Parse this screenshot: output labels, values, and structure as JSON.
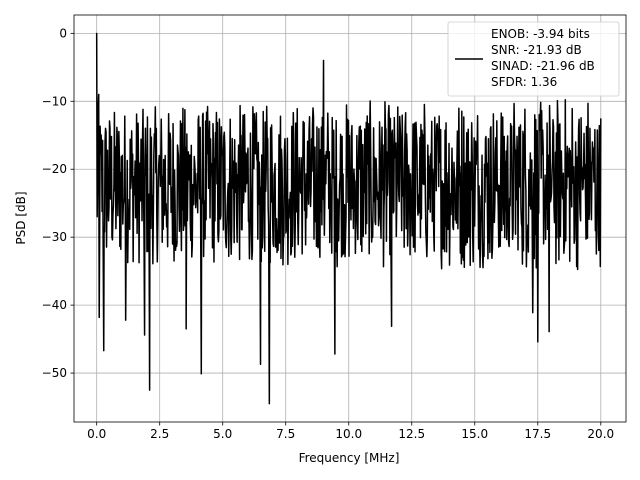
{
  "chart_data": {
    "type": "line",
    "title": "",
    "xlabel": "Frequency [MHz]",
    "ylabel": "PSD [dB]",
    "xlim": [
      -0.9,
      21.0
    ],
    "ylim": [
      -57.2,
      2.7
    ],
    "grid": true,
    "legend_position": "top-right",
    "x_ticks": [
      0.0,
      2.5,
      5.0,
      7.5,
      10.0,
      12.5,
      15.0,
      17.5,
      20.0
    ],
    "x_tick_labels": [
      "0.0",
      "2.5",
      "5.0",
      "7.5",
      "10.0",
      "12.5",
      "15.0",
      "17.5",
      "20.0"
    ],
    "y_ticks": [
      0,
      -10,
      -20,
      -30,
      -40,
      -50
    ],
    "y_tick_labels": [
      "0",
      "−10",
      "−20",
      "−30",
      "−40",
      "−50"
    ],
    "legend": [
      "ENOB: -3.94 bits",
      "SNR: -21.93 dB",
      "SINAD: -21.96 dB",
      "SFDR: 1.36"
    ],
    "series": [
      {
        "color": "#000000",
        "x_range": [
          0,
          20
        ],
        "sample_count": 1024,
        "noise_floor_dB": [
          -34,
          -11
        ],
        "peaks": [
          {
            "x": 0.0,
            "y": 0
          },
          {
            "x": 0.08,
            "y": -9
          },
          {
            "x": 0.1,
            "y": -41.8
          },
          {
            "x": 0.28,
            "y": -46.7
          },
          {
            "x": 1.15,
            "y": -42.2
          },
          {
            "x": 1.9,
            "y": -44.4
          },
          {
            "x": 2.1,
            "y": -52.5
          },
          {
            "x": 3.55,
            "y": -43.5
          },
          {
            "x": 4.15,
            "y": -50.1
          },
          {
            "x": 6.5,
            "y": -48.7
          },
          {
            "x": 6.85,
            "y": -54.5
          },
          {
            "x": 9.0,
            "y": -4.0
          },
          {
            "x": 9.45,
            "y": -47.2
          },
          {
            "x": 11.7,
            "y": -43.1
          },
          {
            "x": 17.3,
            "y": -41.1
          },
          {
            "x": 17.5,
            "y": -45.4
          },
          {
            "x": 17.95,
            "y": -43.9
          }
        ]
      }
    ]
  }
}
